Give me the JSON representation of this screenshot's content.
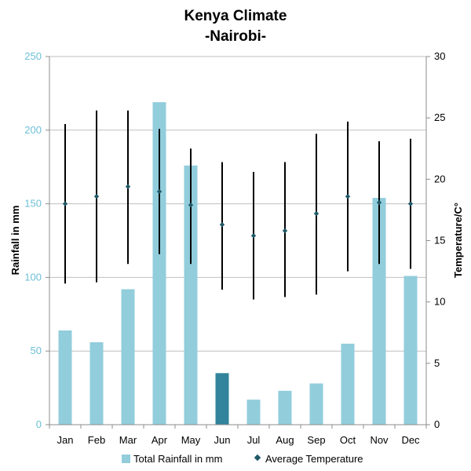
{
  "chart_data": {
    "type": "bar",
    "title": "Kenya Climate",
    "subtitle": "-Nairobi-",
    "categories": [
      "Jan",
      "Feb",
      "Mar",
      "Apr",
      "May",
      "Jun",
      "Jul",
      "Aug",
      "Sep",
      "Oct",
      "Nov",
      "Dec"
    ],
    "ylabel": "Rainfall in mm",
    "y2label": "Temperature/C°",
    "ylim": [
      0,
      250
    ],
    "y2lim": [
      0,
      30
    ],
    "yticks": [
      0,
      50,
      100,
      150,
      200,
      250
    ],
    "y2ticks": [
      0,
      5,
      10,
      15,
      20,
      25,
      30
    ],
    "grid": true,
    "legend_position": "bottom",
    "series": [
      {
        "name": "Total Rainfall in mm",
        "type": "bar",
        "axis": "left",
        "color": "#92cddc",
        "highlight_color": "#31849b",
        "highlight_index": 5,
        "values": [
          64,
          56,
          92,
          219,
          176,
          35,
          17,
          23,
          28,
          55,
          154,
          101
        ]
      },
      {
        "name": "Average Temperature",
        "type": "scatter",
        "axis": "right",
        "color": "#215968",
        "values": [
          18.0,
          18.6,
          19.4,
          19.0,
          17.9,
          16.3,
          15.4,
          15.8,
          17.2,
          18.6,
          18.1,
          18.0
        ],
        "range_high": [
          24.5,
          25.6,
          25.6,
          24.1,
          22.5,
          21.4,
          20.6,
          21.4,
          23.7,
          24.7,
          23.1,
          23.3
        ],
        "range_low": [
          11.5,
          11.6,
          13.1,
          13.9,
          13.1,
          11.0,
          10.2,
          10.4,
          10.6,
          12.5,
          13.1,
          12.7
        ]
      }
    ]
  }
}
